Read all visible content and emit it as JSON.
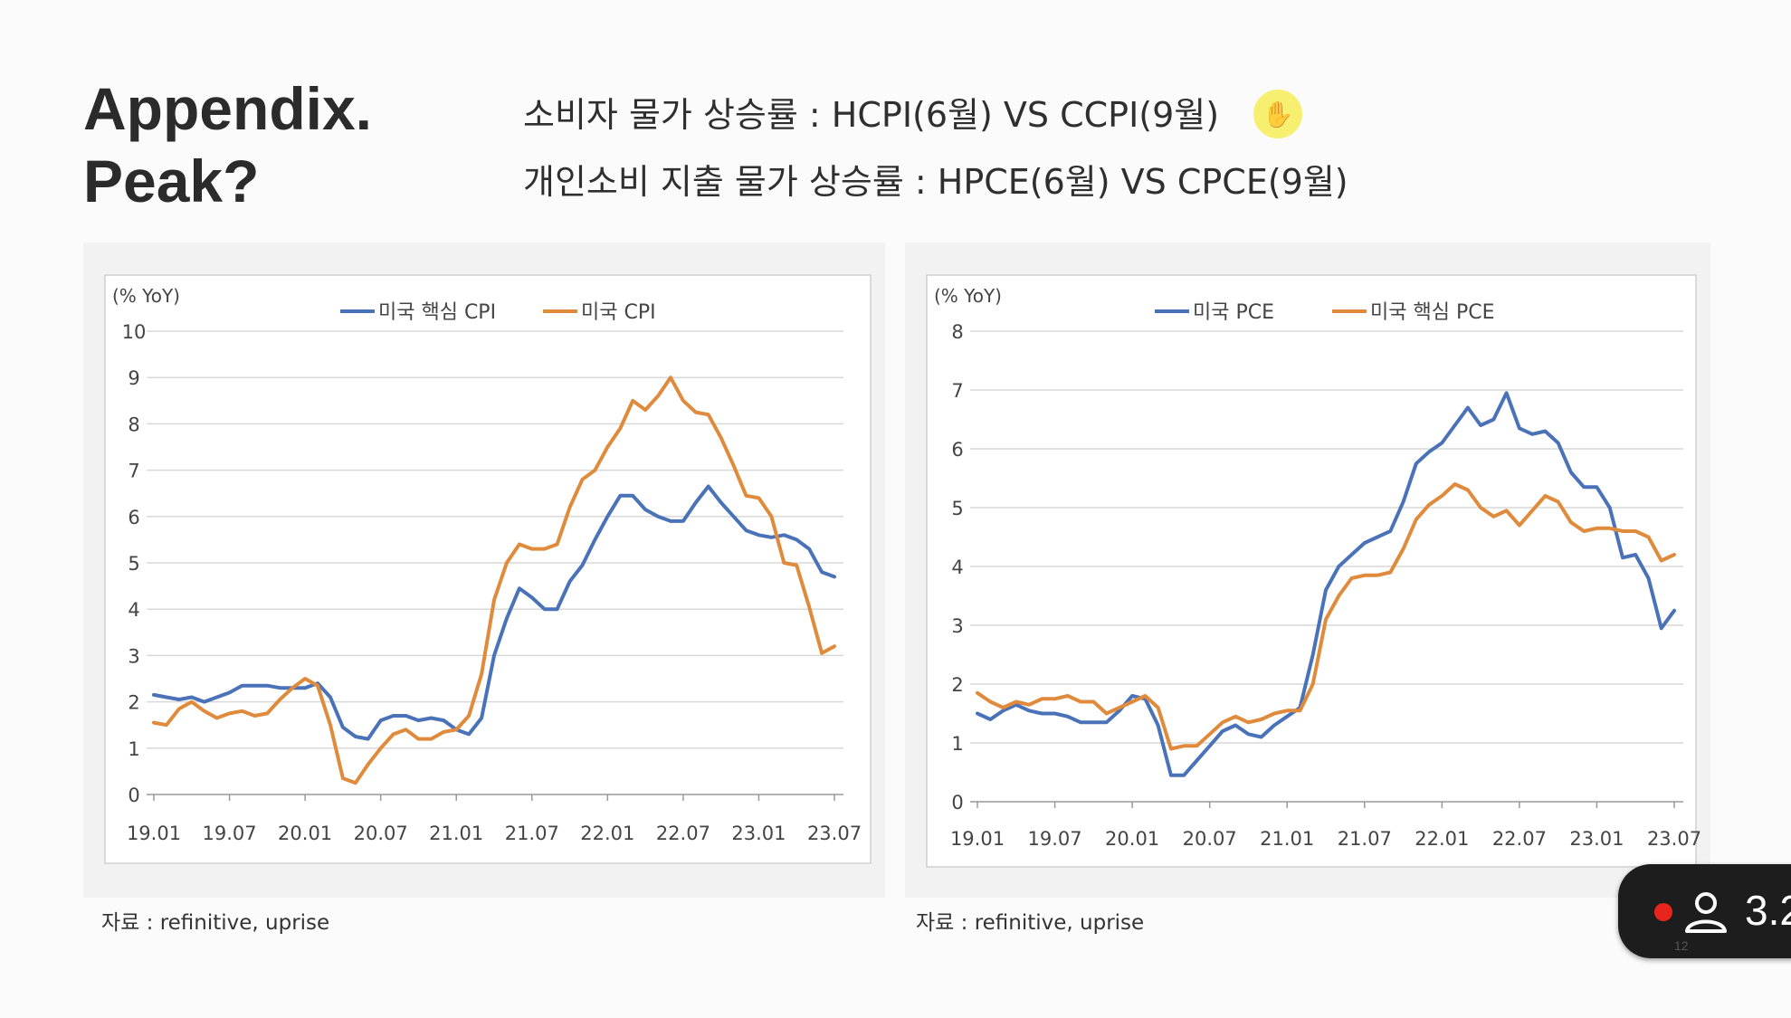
{
  "slide": {
    "title_line1": "Appendix.",
    "title_line2": "Peak?",
    "subtitle1": "소비자 물가 상승률 : HCPI(6월) VS CCPI(9월)",
    "subtitle2": "개인소비 지출 물가 상승률 : HPCE(6월)  VS CPCE(9월)",
    "source_left": "자료 : refinitive, uprise",
    "source_right": "자료 : refinitive, uprise",
    "cursor_icon": "hand-cursor-icon",
    "page_number": "12"
  },
  "recording": {
    "indicator_color": "#e8251d",
    "icon": "person-icon",
    "count": "3.2"
  },
  "chart_data": [
    {
      "type": "line",
      "unit_label": "(% YoY)",
      "ylim": [
        0,
        10
      ],
      "yticks": [
        0,
        1,
        2,
        3,
        4,
        5,
        6,
        7,
        8,
        9,
        10
      ],
      "xtick_labels": [
        "19.01",
        "19.07",
        "20.01",
        "20.07",
        "21.01",
        "21.07",
        "22.01",
        "22.07",
        "23.01",
        "23.07"
      ],
      "grid": true,
      "legend_position": "top",
      "series": [
        {
          "name": "미국 핵심 CPI",
          "color": "#4a72b8",
          "values": [
            2.15,
            2.1,
            2.05,
            2.1,
            2.0,
            2.1,
            2.2,
            2.35,
            2.35,
            2.35,
            2.3,
            2.3,
            2.3,
            2.4,
            2.1,
            1.45,
            1.25,
            1.2,
            1.6,
            1.7,
            1.7,
            1.6,
            1.65,
            1.6,
            1.4,
            1.3,
            1.65,
            3.0,
            3.8,
            4.45,
            4.25,
            4.0,
            4.0,
            4.6,
            4.95,
            5.5,
            6.0,
            6.45,
            6.45,
            6.15,
            6.0,
            5.9,
            5.9,
            6.3,
            6.65,
            6.3,
            6.0,
            5.7,
            5.6,
            5.55,
            5.6,
            5.5,
            5.3,
            4.8,
            4.7
          ]
        },
        {
          "name": "미국 CPI",
          "color": "#e08a3c",
          "values": [
            1.55,
            1.5,
            1.85,
            2.0,
            1.8,
            1.65,
            1.75,
            1.8,
            1.7,
            1.75,
            2.05,
            2.3,
            2.5,
            2.35,
            1.5,
            0.35,
            0.25,
            0.65,
            1.0,
            1.3,
            1.4,
            1.2,
            1.2,
            1.35,
            1.4,
            1.7,
            2.6,
            4.2,
            5.0,
            5.4,
            5.3,
            5.3,
            5.4,
            6.2,
            6.8,
            7.0,
            7.5,
            7.9,
            8.5,
            8.3,
            8.6,
            9.0,
            8.5,
            8.25,
            8.2,
            7.7,
            7.1,
            6.45,
            6.4,
            6.0,
            5.0,
            4.95,
            4.05,
            3.05,
            3.2
          ]
        }
      ]
    },
    {
      "type": "line",
      "unit_label": "(% YoY)",
      "ylim": [
        0,
        8
      ],
      "yticks": [
        0,
        1,
        2,
        3,
        4,
        5,
        6,
        7,
        8
      ],
      "xtick_labels": [
        "19.01",
        "19.07",
        "20.01",
        "20.07",
        "21.01",
        "21.07",
        "22.01",
        "22.07",
        "23.01",
        "23.07"
      ],
      "grid": true,
      "legend_position": "top",
      "series": [
        {
          "name": "미국 PCE",
          "color": "#4a72b8",
          "values": [
            1.5,
            1.4,
            1.55,
            1.65,
            1.55,
            1.5,
            1.5,
            1.45,
            1.35,
            1.35,
            1.35,
            1.55,
            1.8,
            1.75,
            1.3,
            0.45,
            0.45,
            0.7,
            0.95,
            1.2,
            1.3,
            1.15,
            1.1,
            1.3,
            1.45,
            1.6,
            2.5,
            3.6,
            4.0,
            4.2,
            4.4,
            4.5,
            4.6,
            5.1,
            5.75,
            5.95,
            6.1,
            6.4,
            6.7,
            6.4,
            6.5,
            6.95,
            6.35,
            6.25,
            6.3,
            6.1,
            5.6,
            5.35,
            5.35,
            5.0,
            4.15,
            4.2,
            3.8,
            2.95,
            3.25
          ]
        },
        {
          "name": "미국 핵심 PCE",
          "color": "#e08a3c",
          "values": [
            1.85,
            1.7,
            1.6,
            1.7,
            1.65,
            1.75,
            1.75,
            1.8,
            1.7,
            1.7,
            1.5,
            1.6,
            1.7,
            1.8,
            1.6,
            0.9,
            0.95,
            0.95,
            1.15,
            1.35,
            1.45,
            1.35,
            1.4,
            1.5,
            1.55,
            1.55,
            2.0,
            3.1,
            3.5,
            3.8,
            3.85,
            3.85,
            3.9,
            4.3,
            4.8,
            5.05,
            5.2,
            5.4,
            5.3,
            5.0,
            4.85,
            4.95,
            4.7,
            4.95,
            5.2,
            5.1,
            4.75,
            4.6,
            4.65,
            4.65,
            4.6,
            4.6,
            4.5,
            4.1,
            4.2
          ]
        }
      ]
    }
  ]
}
